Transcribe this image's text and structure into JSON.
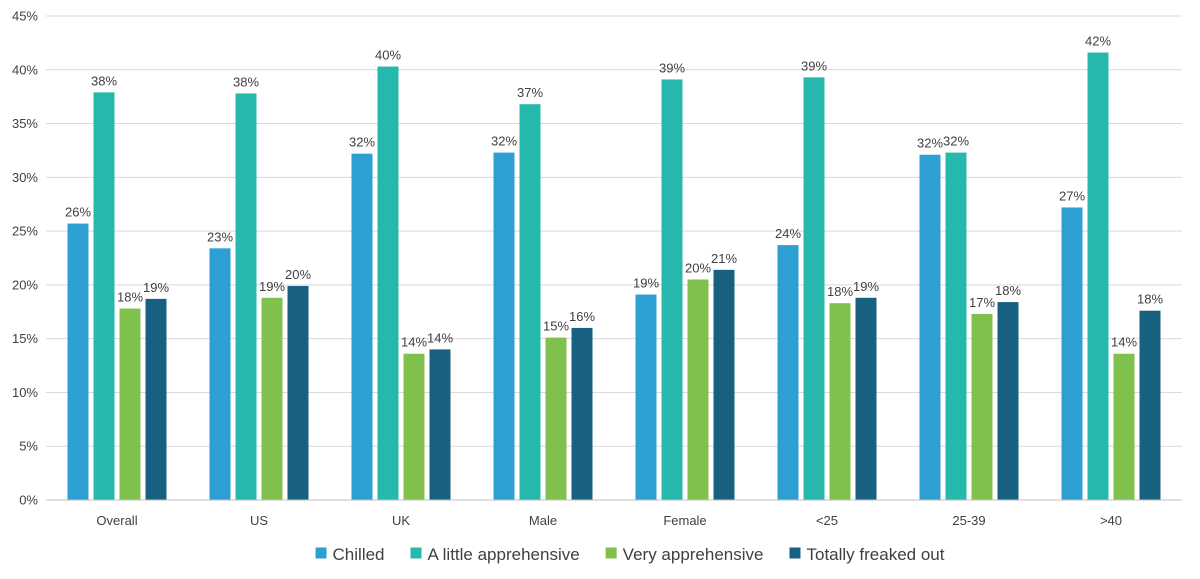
{
  "chart_data": {
    "type": "bar",
    "title": "",
    "xlabel": "",
    "ylabel": "",
    "ylim": [
      0,
      45
    ],
    "y_ticks": [
      0,
      5,
      10,
      15,
      20,
      25,
      30,
      35,
      40,
      45
    ],
    "y_tick_suffix": "%",
    "grid": true,
    "legend_position": "bottom",
    "categories": [
      "Overall",
      "US",
      "UK",
      "Male",
      "Female",
      "<25",
      "25-39",
      ">40"
    ],
    "series": [
      {
        "name": "Chilled",
        "color": "#2e9fd3",
        "values": [
          25.7,
          23.4,
          32.2,
          32.3,
          19.1,
          23.7,
          32.1,
          27.2
        ],
        "labels": [
          "26%",
          "23%",
          "32%",
          "32%",
          "19%",
          "24%",
          "32%",
          "27%"
        ]
      },
      {
        "name": "A little apprehensive",
        "color": "#26b8ad",
        "values": [
          37.9,
          37.8,
          40.3,
          36.8,
          39.1,
          39.3,
          32.3,
          41.6
        ],
        "labels": [
          "38%",
          "38%",
          "40%",
          "37%",
          "39%",
          "39%",
          "32%",
          "42%"
        ]
      },
      {
        "name": "Very apprehensive",
        "color": "#80c14e",
        "values": [
          17.8,
          null,
          13.6,
          15.1,
          20.5,
          18.3,
          17.3,
          13.6
        ],
        "labels": [
          "18%",
          "",
          "14%",
          "15%",
          "20%",
          "18%",
          "17%",
          "14%"
        ]
      },
      {
        "name": "Totally freaked out",
        "color": "#17607f",
        "values": [
          18.7,
          19.9,
          14.0,
          16.0,
          21.4,
          18.8,
          18.4,
          17.6
        ],
        "labels": [
          "19%",
          "20%",
          "14%",
          "16%",
          "21%",
          "19%",
          "18%",
          "18%"
        ]
      }
    ],
    "extra_annotations": [
      {
        "category": "US",
        "series_index": 1.5,
        "value": 18.8,
        "label": "19%",
        "color": "#80c14e"
      }
    ]
  }
}
